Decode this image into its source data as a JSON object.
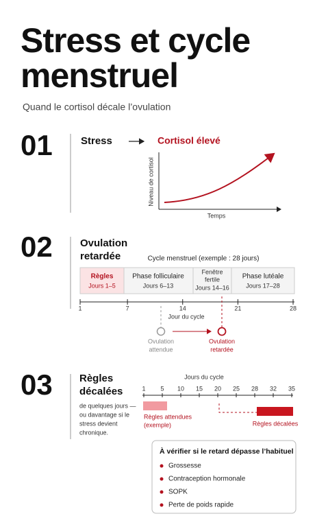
{
  "header": {
    "title_lines": [
      "Stress et cycle",
      "menstruel"
    ],
    "subtitle": "Quand le cortisol décale l’ovulation"
  },
  "sections": [
    {
      "number": "01",
      "cause": "Stress",
      "effect": "Cortisol élevé",
      "chart": {
        "y_label": "Niveau de cortisol",
        "x_label": "Temps"
      }
    },
    {
      "number": "02",
      "title_lines": [
        "Ovulation",
        "retardée"
      ],
      "caption": "Cycle menstruel (exemple : 28 jours)",
      "phases": [
        {
          "name_lines": [
            "Règles"
          ],
          "days": "Jours 1–5"
        },
        {
          "name_lines": [
            "Phase folliculaire"
          ],
          "days": "Jours 6–13"
        },
        {
          "name_lines": [
            "Fenêtre",
            "fertile"
          ],
          "days": "Jours 14–16"
        },
        {
          "name_lines": [
            "Phase lutéale"
          ],
          "days": "Jours 17–28"
        }
      ],
      "axis": {
        "label": "Jour du cycle",
        "ticks": [
          1,
          7,
          14,
          21,
          28
        ]
      },
      "markers": [
        {
          "label_lines": [
            "Ovulation",
            "attendue"
          ]
        },
        {
          "label_lines": [
            "Ovulation",
            "retardée"
          ]
        }
      ]
    },
    {
      "number": "03",
      "title_lines": [
        "Règles",
        "décalées"
      ],
      "description_lines": [
        "de quelques jours —",
        "ou davantage si le",
        "stress devient",
        "chronique."
      ],
      "axis": {
        "label": "Jours du cycle",
        "ticks": [
          1,
          5,
          10,
          15,
          20,
          25,
          28,
          32,
          35
        ]
      },
      "bars": [
        {
          "label_lines": [
            "Règles attendues",
            "(exemple)"
          ]
        },
        {
          "label_lines": [
            "Règles décalées"
          ]
        }
      ]
    }
  ],
  "checklist": {
    "title": "À vérifier si le retard dépasse l’habituel",
    "items": [
      "Grossesse",
      "Contraception hormonale",
      "SOPK",
      "Perte de poids rapide"
    ]
  }
}
